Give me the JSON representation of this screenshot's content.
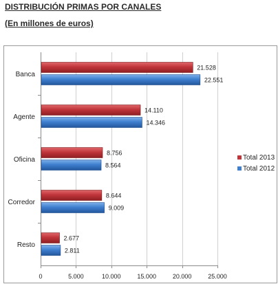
{
  "header": {
    "title": "DISTRIBUCIÓN PRIMAS POR CANALES",
    "subtitle": "(En millones de euros)"
  },
  "chart_data": {
    "type": "bar",
    "orientation": "horizontal",
    "categories": [
      "Banca",
      "Agente",
      "Oficina",
      "Corredor",
      "Resto"
    ],
    "series": [
      {
        "name": "Total 2013",
        "color": "#c0353a",
        "values": [
          21528,
          14110,
          8756,
          8644,
          2677
        ],
        "labels": [
          "21.528",
          "14.110",
          "8.756",
          "8.644",
          "2.677"
        ]
      },
      {
        "name": "Total 2012",
        "color": "#3f7fcf",
        "values": [
          22551,
          14346,
          8564,
          9009,
          2811
        ],
        "labels": [
          "22.551",
          "14.346",
          "8.564",
          "9.009",
          "2.811"
        ]
      }
    ],
    "xlim": [
      0,
      25000
    ],
    "xticks": [
      0,
      5000,
      10000,
      15000,
      20000,
      25000
    ],
    "xtick_labels": [
      "0",
      "5.000",
      "10.000",
      "15.000",
      "20.000",
      "25.000"
    ],
    "grid": true,
    "legend_position": "right"
  }
}
